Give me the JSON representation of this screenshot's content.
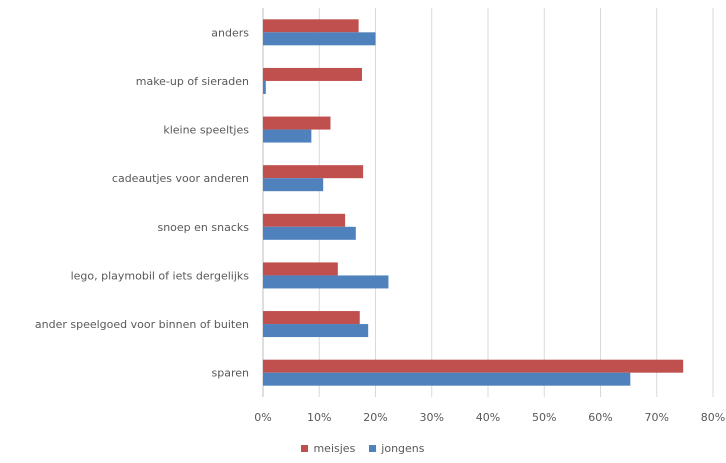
{
  "chart_data": {
    "type": "bar",
    "orientation": "horizontal",
    "categories": [
      "anders",
      "make-up of sieraden",
      "kleine speeltjes",
      "cadeautjes voor anderen",
      "snoep en snacks",
      "lego, playmobil of iets dergelijks",
      "ander speelgoed voor binnen of buiten",
      "sparen"
    ],
    "series": [
      {
        "name": "meisjes",
        "color": "#C0504D",
        "values": [
          17,
          17.6,
          12,
          17.8,
          14.6,
          13.3,
          17.2,
          74.7
        ]
      },
      {
        "name": "jongens",
        "color": "#4F81BD",
        "values": [
          20,
          0.5,
          8.6,
          10.7,
          16.5,
          22.3,
          18.7,
          65.3
        ]
      }
    ],
    "xlim": [
      0,
      80
    ],
    "xticks": [
      "0%",
      "10%",
      "20%",
      "30%",
      "40%",
      "50%",
      "60%",
      "70%",
      "80%"
    ],
    "grid": true,
    "legend_position": "bottom"
  }
}
